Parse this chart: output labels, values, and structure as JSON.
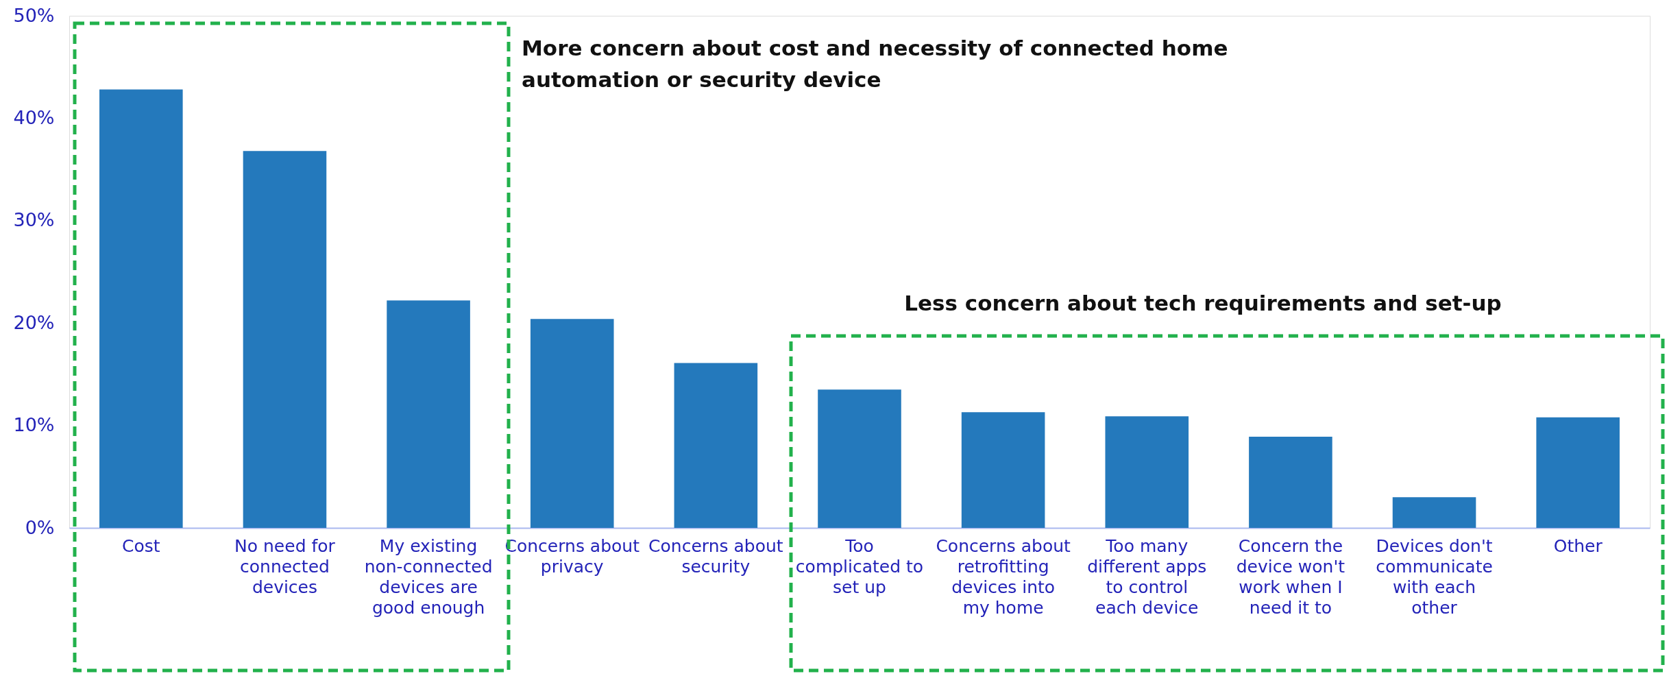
{
  "chart_data": {
    "type": "bar",
    "categories": [
      "Cost",
      "No need for connected devices",
      "My existing non-connected devices are good enough",
      "Concerns about privacy",
      "Concerns about security",
      "Too complicated to set up",
      "Concerns about retrofitting devices into my home",
      "Too many different apps to control each device",
      "Concern the device won't work when I need it to",
      "Devices don't communicate with each other",
      "Other"
    ],
    "values": [
      42.8,
      36.8,
      22.2,
      20.4,
      16.1,
      13.5,
      11.3,
      10.9,
      8.9,
      3.0,
      10.8
    ],
    "color": "#2479bc",
    "ylim": [
      0,
      50
    ],
    "yticks": [
      {
        "value": 0,
        "label": "0%"
      },
      {
        "value": 10,
        "label": "10%"
      },
      {
        "value": 20,
        "label": "20%"
      },
      {
        "value": 30,
        "label": "30%"
      },
      {
        "value": 40,
        "label": "40%"
      },
      {
        "value": 50,
        "label": "50%"
      }
    ],
    "grid": false,
    "annotations": [
      "More concern about cost and necessity of connected home automation or security device",
      "Less concern about tech requirements and set-up"
    ]
  }
}
